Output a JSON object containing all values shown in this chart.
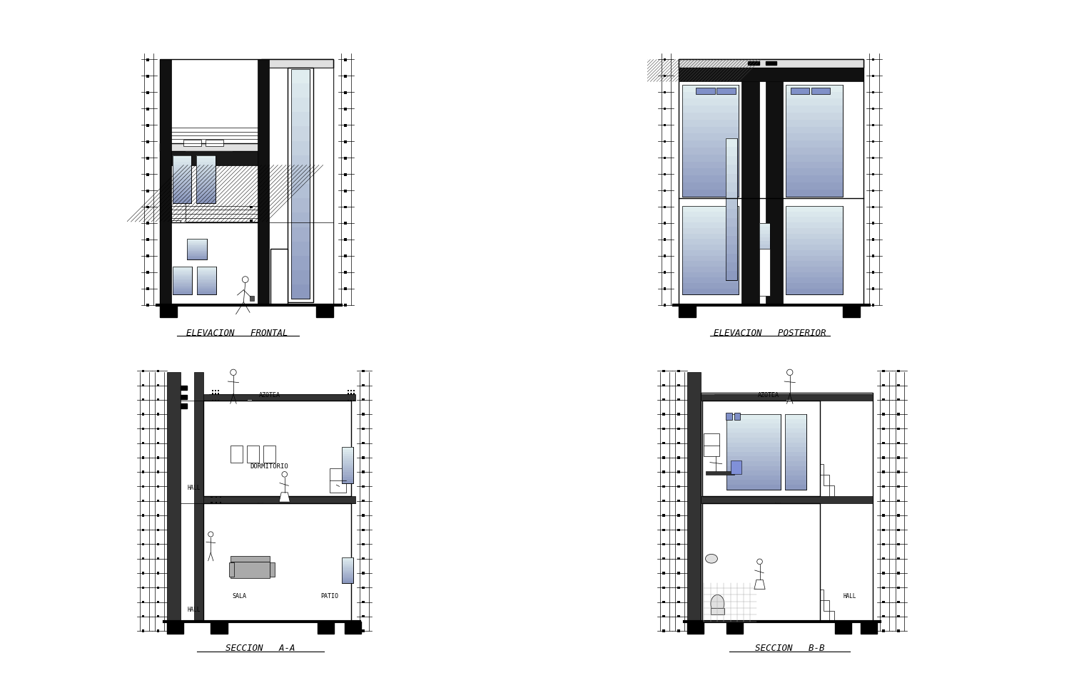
{
  "background_color": "#ffffff",
  "labels": {
    "top_left": "ELEVACION   FRONTAL",
    "top_right": "ELEVACION   POSTERIOR",
    "bottom_left": "SECCION   A-A",
    "bottom_right": "SECCION   B-B"
  },
  "blue_window_top": "#8090d8",
  "blue_window_bot": "#c8d0f0",
  "blue_mid": "#6878c8",
  "black": "#000000",
  "white": "#ffffff",
  "gray_light": "#e0e0e0",
  "gray_mid": "#aaaaaa",
  "gray_dark": "#555555",
  "hatch_color": "#333333",
  "lw_thin": 0.5,
  "lw_med": 1.0,
  "lw_thick": 1.8,
  "lw_vthick": 3.0,
  "label_fontsize": 8
}
